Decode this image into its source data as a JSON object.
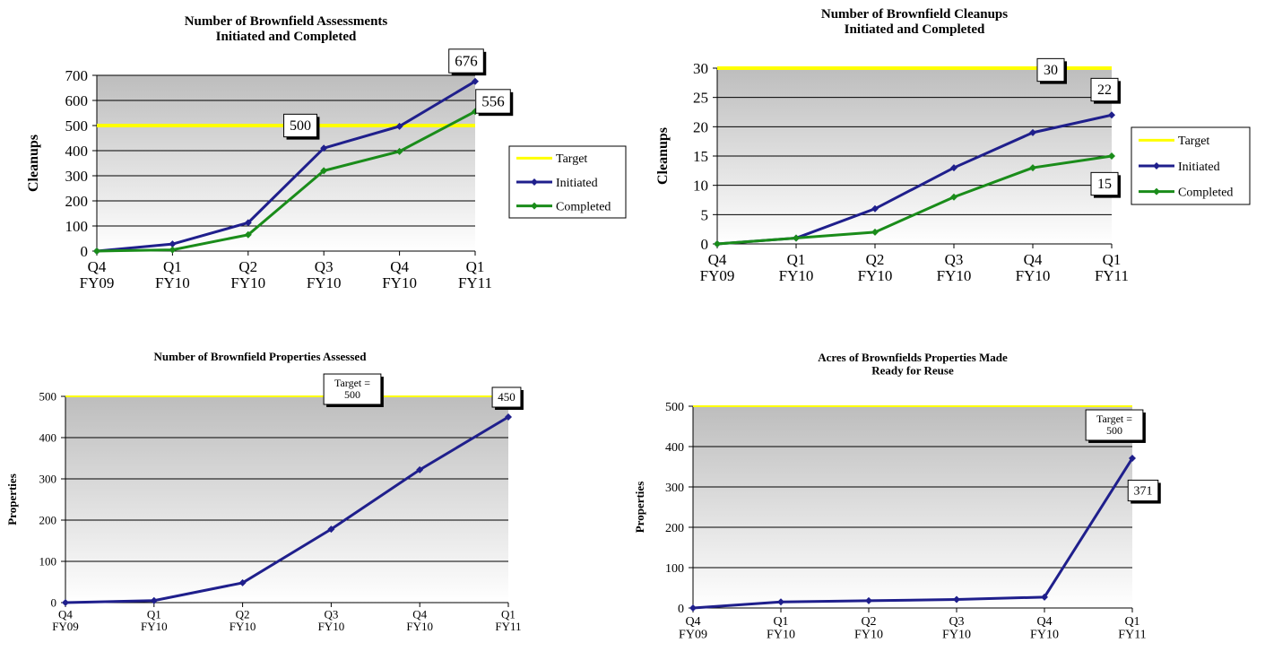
{
  "colors": {
    "target": "#ffff00",
    "initiated": "#1f1f8c",
    "completed": "#1a8c1a",
    "plot_top": "#bdbdbd",
    "plot_bottom": "#ffffff"
  },
  "chart_data": [
    {
      "type": "line",
      "title": "Number of Brownfield Assessments\nInitiated and Completed",
      "ylabel": "Cleanups",
      "xlabel": "",
      "categories": [
        "Q4\nFY09",
        "Q1\nFY10",
        "Q2\nFY10",
        "Q3\nFY10",
        "Q4\nFY10",
        "Q1\nFY11"
      ],
      "ylim": [
        0,
        700
      ],
      "yticks": [
        0,
        100,
        200,
        300,
        400,
        500,
        600,
        700
      ],
      "grid": true,
      "legend": "right",
      "target": {
        "name": "Target",
        "value": 500,
        "label": "500"
      },
      "series": [
        {
          "name": "Initiated",
          "values": [
            0,
            28,
            113,
            410,
            497,
            676
          ],
          "last_label": "676"
        },
        {
          "name": "Completed",
          "values": [
            0,
            5,
            65,
            320,
            397,
            556
          ],
          "last_label": "556"
        }
      ]
    },
    {
      "type": "line",
      "title": "Number of Brownfield Cleanups\nInitiated and Completed",
      "ylabel": "Cleanups",
      "xlabel": "",
      "categories": [
        "Q4\nFY09",
        "Q1\nFY10",
        "Q2\nFY10",
        "Q3\nFY10",
        "Q4\nFY10",
        "Q1\nFY11"
      ],
      "ylim": [
        0,
        30
      ],
      "yticks": [
        0,
        5,
        10,
        15,
        20,
        25,
        30
      ],
      "grid": true,
      "legend": "right",
      "target": {
        "name": "Target",
        "value": 30,
        "label": "30"
      },
      "series": [
        {
          "name": "Initiated",
          "values": [
            0,
            1,
            6,
            13,
            19,
            22
          ],
          "last_label": "22"
        },
        {
          "name": "Completed",
          "values": [
            0,
            1,
            2,
            8,
            13,
            15
          ],
          "last_label": "15"
        }
      ]
    },
    {
      "type": "line",
      "title": "Number of Brownfield Properties  Assessed",
      "ylabel": "Properties",
      "xlabel": "",
      "categories": [
        "Q4\nFY09",
        "Q1\nFY10",
        "Q2\nFY10",
        "Q3\nFY10",
        "Q4\nFY10",
        "Q1\nFY11"
      ],
      "ylim": [
        0,
        500
      ],
      "yticks": [
        0,
        100,
        200,
        300,
        400,
        500
      ],
      "grid": true,
      "legend": "none",
      "target": {
        "name": "",
        "value": 500,
        "label": "Target =\n500"
      },
      "series": [
        {
          "name": "",
          "values": [
            0,
            5,
            48,
            178,
            322,
            450
          ],
          "last_label": "450"
        }
      ]
    },
    {
      "type": "line",
      "title": "Acres of Brownfields  Properties  Made\nReady for Reuse",
      "ylabel": "Properties",
      "xlabel": "",
      "categories": [
        "Q4\nFY09",
        "Q1\nFY10",
        "Q2\nFY10",
        "Q3\nFY10",
        "Q4\nFY10",
        "Q1\nFY11"
      ],
      "ylim": [
        0,
        500
      ],
      "yticks": [
        0,
        100,
        200,
        300,
        400,
        500
      ],
      "grid": true,
      "legend": "none",
      "target": {
        "name": "",
        "value": 500,
        "label": "Target =\n500"
      },
      "series": [
        {
          "name": "",
          "values": [
            0,
            15,
            18,
            21,
            27,
            371
          ],
          "last_label": "371"
        }
      ]
    }
  ]
}
